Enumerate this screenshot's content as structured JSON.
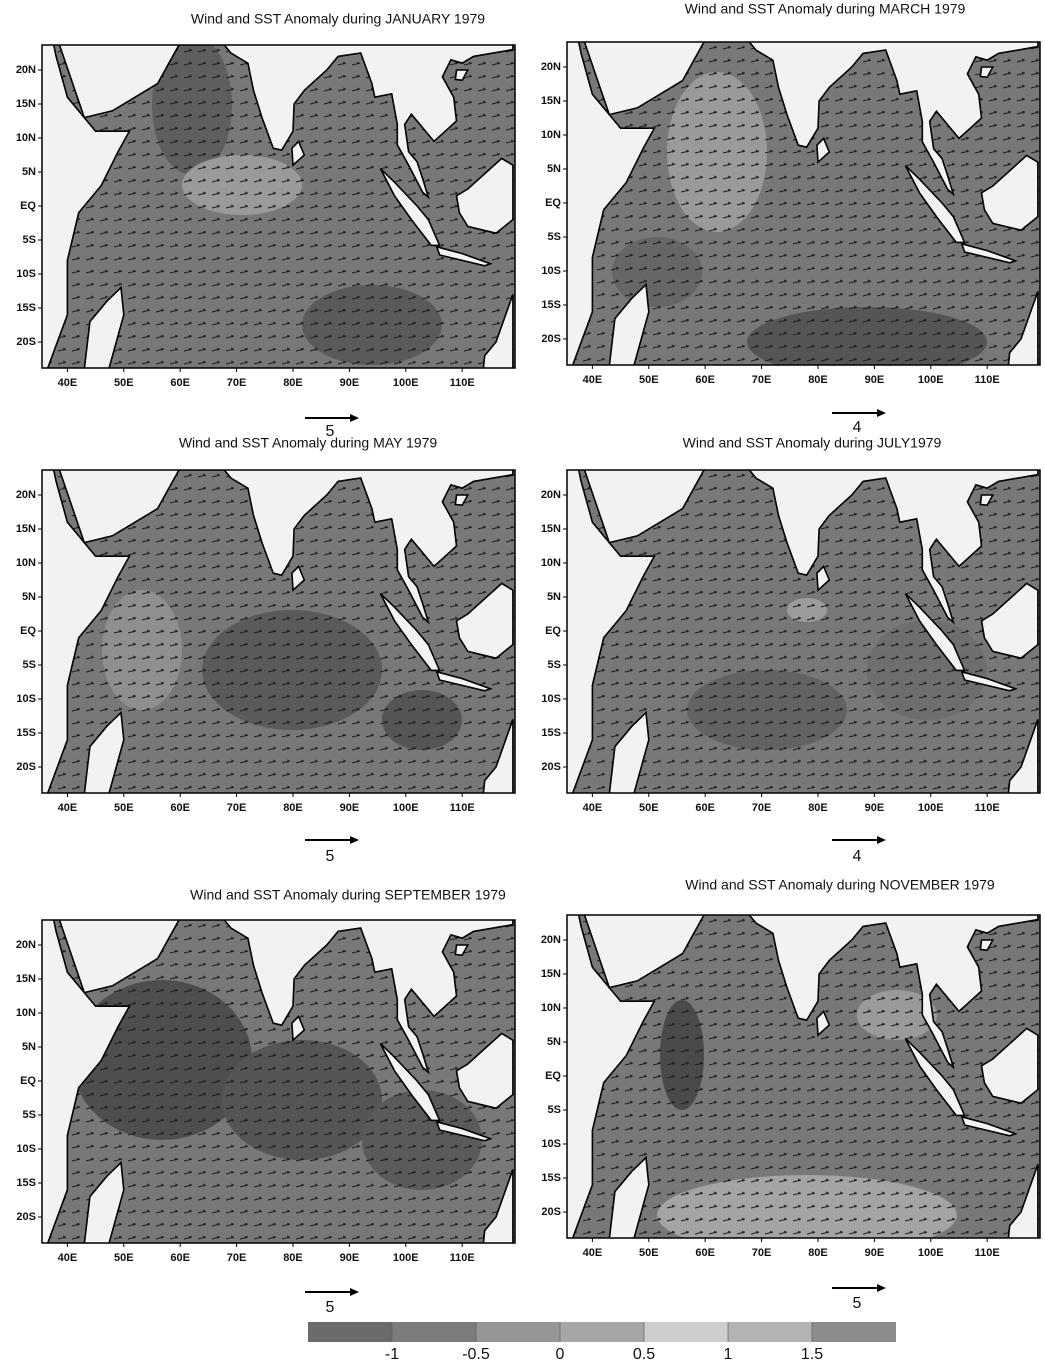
{
  "panels": [
    {
      "title": "Wind and SST Anomaly during JANUARY 1979",
      "reference_vector": 5
    },
    {
      "title": "Wind and SST Anomaly during MARCH 1979",
      "reference_vector": 4
    },
    {
      "title": "Wind and SST Anomaly during MAY 1979",
      "reference_vector": 5
    },
    {
      "title": "Wind and SST Anomaly during JULY1979",
      "reference_vector": 4
    },
    {
      "title": "Wind and SST Anomaly during SEPTEMBER 1979",
      "reference_vector": 5
    },
    {
      "title": "Wind and SST Anomaly during NOVEMBER 1979",
      "reference_vector": 5
    }
  ],
  "lat_labels": [
    "20N",
    "15N",
    "10N",
    "5N",
    "EQ",
    "5S",
    "10S",
    "15S",
    "20S"
  ],
  "lon_labels": [
    "40E",
    "50E",
    "60E",
    "70E",
    "80E",
    "90E",
    "100E",
    "110E"
  ],
  "colorbar": {
    "ticks": [
      -1,
      -0.5,
      0,
      0.5,
      1,
      1.5
    ],
    "colors": [
      "#6b6b6b",
      "#7c7c7c",
      "#959595",
      "#a6a6a6",
      "#cdcdcd",
      "#b3b3b3",
      "#8c8c8c"
    ]
  }
}
